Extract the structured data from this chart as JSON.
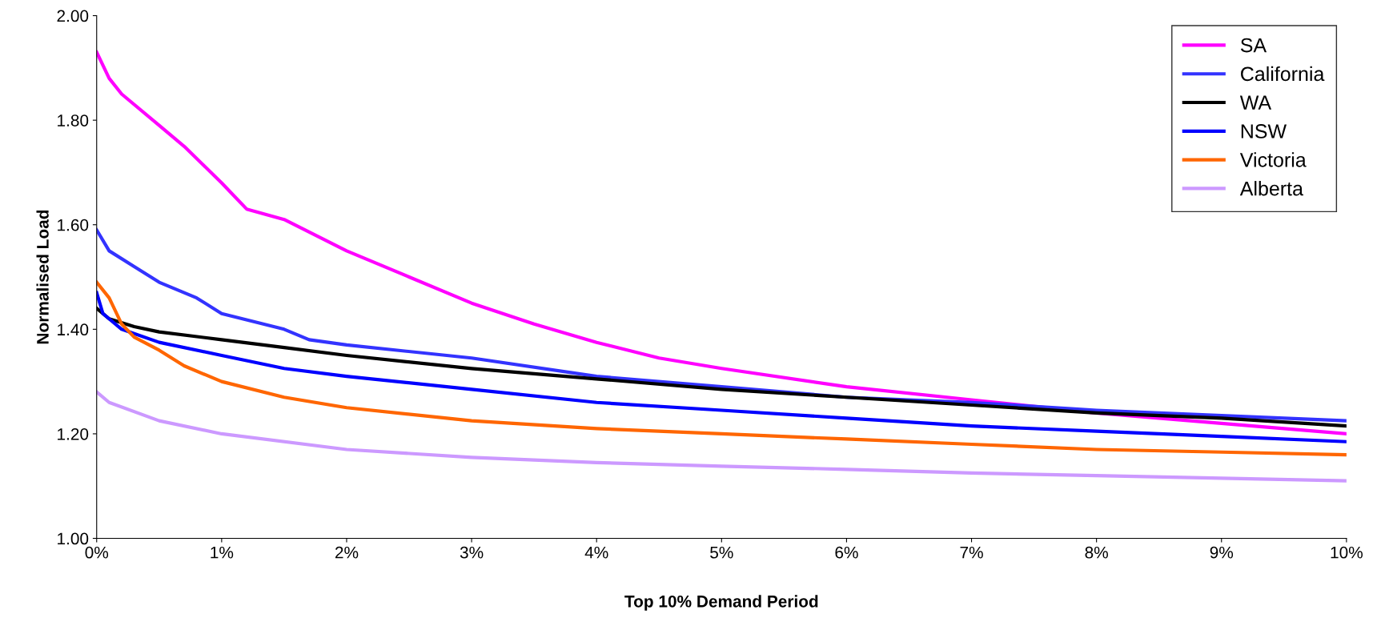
{
  "chart_data": {
    "type": "line",
    "xlabel": "Top 10% Demand Period",
    "ylabel": "Normalised Load",
    "xlim": [
      0,
      10
    ],
    "xticks": [
      {
        "value": 0,
        "label": "0%"
      },
      {
        "value": 1,
        "label": "1%"
      },
      {
        "value": 2,
        "label": "2%"
      },
      {
        "value": 3,
        "label": "3%"
      },
      {
        "value": 4,
        "label": "4%"
      },
      {
        "value": 5,
        "label": "5%"
      },
      {
        "value": 6,
        "label": "6%"
      },
      {
        "value": 7,
        "label": "7%"
      },
      {
        "value": 8,
        "label": "8%"
      },
      {
        "value": 9,
        "label": "9%"
      },
      {
        "value": 10,
        "label": "10%"
      }
    ],
    "ylim": [
      1.0,
      2.0
    ],
    "yticks": [
      {
        "value": 1.0,
        "label": "1.00"
      },
      {
        "value": 1.2,
        "label": "1.20"
      },
      {
        "value": 1.4,
        "label": "1.40"
      },
      {
        "value": 1.6,
        "label": "1.60"
      },
      {
        "value": 1.8,
        "label": "1.80"
      },
      {
        "value": 2.0,
        "label": "2.00"
      }
    ],
    "grid": false,
    "legend": "top right",
    "marker": "none",
    "line_style": "solid",
    "series": [
      {
        "name": "SA",
        "color": "#ff00ff",
        "x": [
          0,
          0.1,
          0.2,
          0.5,
          0.7,
          1,
          1.2,
          1.5,
          2,
          2.5,
          3,
          3.5,
          4,
          4.5,
          5,
          6,
          7,
          8,
          9,
          10
        ],
        "values": [
          1.93,
          1.88,
          1.85,
          1.79,
          1.75,
          1.68,
          1.63,
          1.61,
          1.55,
          1.5,
          1.45,
          1.41,
          1.375,
          1.345,
          1.325,
          1.29,
          1.265,
          1.24,
          1.22,
          1.2
        ]
      },
      {
        "name": "California",
        "color": "#3333ff",
        "x": [
          0,
          0.1,
          0.3,
          0.5,
          0.8,
          1,
          1.5,
          1.7,
          2,
          3,
          4,
          5,
          6,
          7,
          8,
          9,
          10
        ],
        "values": [
          1.59,
          1.55,
          1.52,
          1.49,
          1.46,
          1.43,
          1.4,
          1.38,
          1.37,
          1.345,
          1.31,
          1.29,
          1.27,
          1.26,
          1.245,
          1.235,
          1.225
        ]
      },
      {
        "name": "WA",
        "color": "#000000",
        "x": [
          0,
          0.1,
          0.3,
          0.5,
          1,
          1.5,
          2,
          3,
          4,
          5,
          6,
          7,
          8,
          9,
          10
        ],
        "values": [
          1.44,
          1.42,
          1.405,
          1.395,
          1.38,
          1.365,
          1.35,
          1.325,
          1.305,
          1.285,
          1.27,
          1.255,
          1.24,
          1.23,
          1.215
        ]
      },
      {
        "name": "NSW",
        "color": "#0000ff",
        "x": [
          0,
          0.05,
          0.2,
          0.5,
          1,
          1.5,
          2,
          3,
          4,
          5,
          6,
          7,
          8,
          9,
          10
        ],
        "values": [
          1.47,
          1.43,
          1.4,
          1.375,
          1.35,
          1.325,
          1.31,
          1.285,
          1.26,
          1.245,
          1.23,
          1.215,
          1.205,
          1.195,
          1.185
        ]
      },
      {
        "name": "Victoria",
        "color": "#ff6600",
        "x": [
          0,
          0.1,
          0.2,
          0.3,
          0.5,
          0.7,
          1,
          1.5,
          2,
          3,
          4,
          5,
          6,
          7,
          8,
          9,
          10
        ],
        "values": [
          1.49,
          1.46,
          1.41,
          1.385,
          1.36,
          1.33,
          1.3,
          1.27,
          1.25,
          1.225,
          1.21,
          1.2,
          1.19,
          1.18,
          1.17,
          1.165,
          1.16
        ]
      },
      {
        "name": "Alberta",
        "color": "#cc99ff",
        "x": [
          0,
          0.1,
          0.5,
          1,
          2,
          3,
          4,
          5,
          6,
          7,
          8,
          9,
          10
        ],
        "values": [
          1.28,
          1.26,
          1.225,
          1.2,
          1.17,
          1.155,
          1.145,
          1.138,
          1.132,
          1.125,
          1.12,
          1.115,
          1.11
        ]
      }
    ]
  }
}
